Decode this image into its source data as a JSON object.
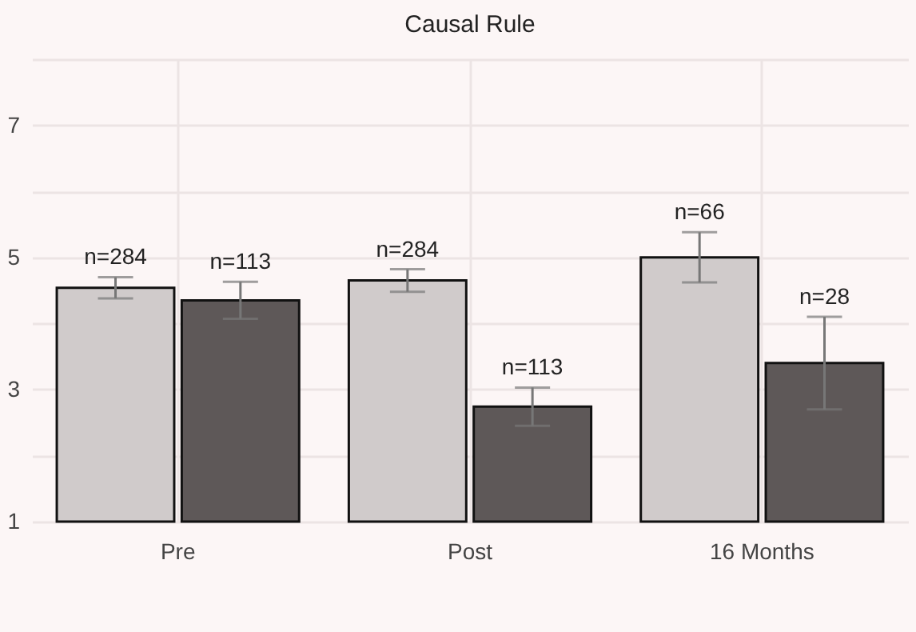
{
  "chart_data": {
    "type": "bar",
    "title": "Causal Rule",
    "categories": [
      "Pre",
      "Post",
      "16 Months"
    ],
    "series": [
      {
        "color": "#d0cbcb",
        "values": [
          4.54,
          4.65,
          5.0
        ],
        "errors": [
          0.16,
          0.17,
          0.38
        ]
      },
      {
        "color": "#5e5858",
        "values": [
          4.35,
          2.74,
          3.4
        ],
        "errors": [
          0.28,
          0.29,
          0.7
        ]
      }
    ],
    "annotations": [
      "n=284",
      "n=113",
      "n=284",
      "n=113",
      "n=66",
      "n=28"
    ],
    "ylim": [
      1,
      8
    ],
    "yticks": [
      1,
      {
        "value": 2,
        "label": null
      },
      3,
      {
        "value": 4,
        "label": null
      },
      5,
      {
        "value": 6,
        "label": null
      },
      7,
      {
        "value": 8,
        "label": null
      }
    ],
    "grid": true,
    "legend": false
  }
}
